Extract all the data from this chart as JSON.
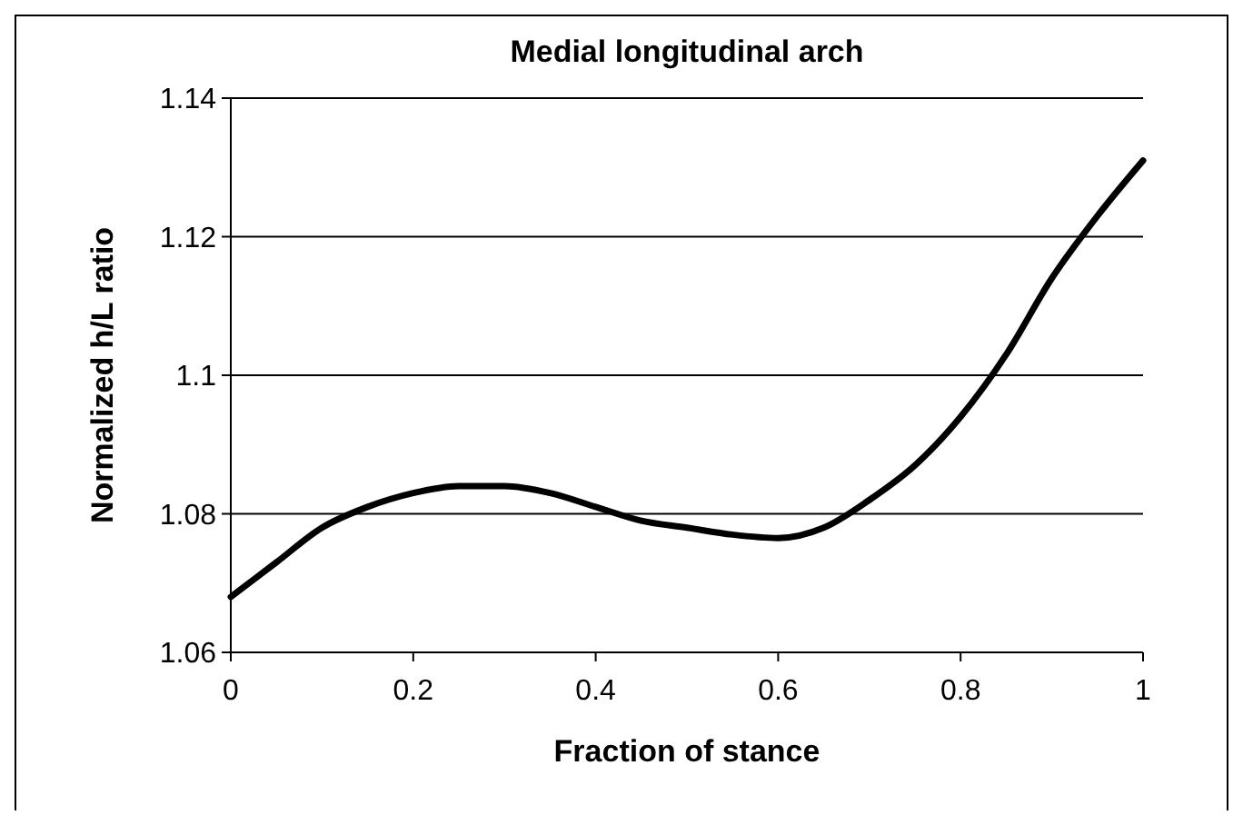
{
  "chart_data": {
    "type": "line",
    "title": "Medial longitudinal arch",
    "xlabel": "Fraction of stance",
    "ylabel": "Normalized h/L ratio",
    "x": [
      0,
      0.05,
      0.1,
      0.15,
      0.2,
      0.25,
      0.3,
      0.35,
      0.4,
      0.45,
      0.5,
      0.55,
      0.6,
      0.65,
      0.7,
      0.75,
      0.8,
      0.85,
      0.9,
      0.95,
      1
    ],
    "series": [
      {
        "color": "#000000",
        "values": [
          1.068,
          1.073,
          1.078,
          1.081,
          1.083,
          1.084,
          1.084,
          1.083,
          1.081,
          1.079,
          1.078,
          1.077,
          1.0765,
          1.078,
          1.082,
          1.087,
          1.094,
          1.103,
          1.114,
          1.123,
          1.131
        ]
      }
    ],
    "xlim": [
      0,
      1
    ],
    "xticks": [
      0,
      0.2,
      0.4,
      0.6,
      0.8,
      1
    ],
    "ylim": [
      1.06,
      1.14
    ],
    "yticks": [
      1.06,
      1.08,
      1.1,
      1.12,
      1.14
    ],
    "grid": "y",
    "marker": "none",
    "line_style": "solid"
  }
}
